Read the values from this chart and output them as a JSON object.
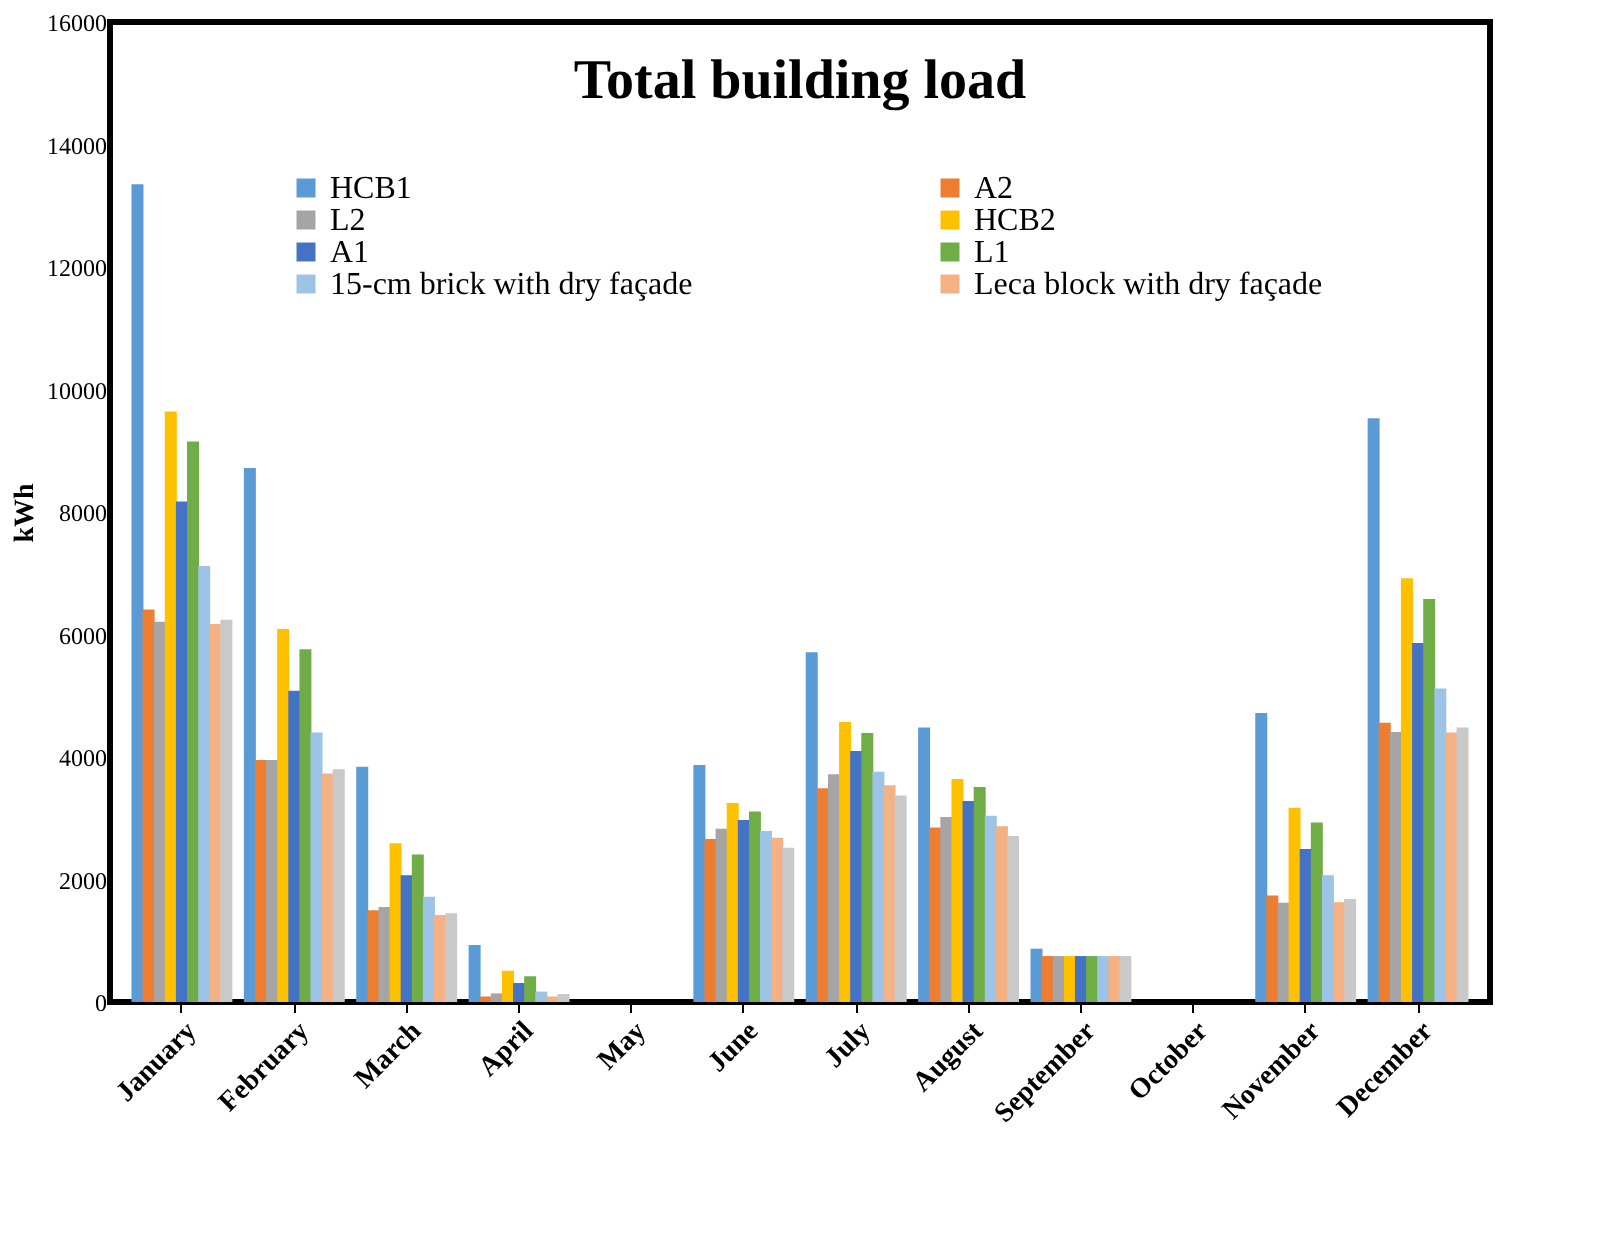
{
  "chart_data": {
    "type": "bar",
    "title": "Total building load",
    "ylabel": "kWh",
    "categories": [
      "January",
      "February",
      "March",
      "April",
      "May",
      "June",
      "July",
      "August",
      "September",
      "October",
      "November",
      "December"
    ],
    "series": [
      {
        "name": "HCB1",
        "color": "#5b9bd5",
        "values": [
          13350,
          8720,
          3840,
          930,
          0,
          3870,
          5710,
          4480,
          870,
          0,
          4720,
          9530
        ]
      },
      {
        "name": "A2",
        "color": "#ed7d31",
        "values": [
          6410,
          3950,
          1500,
          90,
          0,
          2660,
          3490,
          2850,
          750,
          0,
          1740,
          4560
        ]
      },
      {
        "name": "L2",
        "color": "#a5a5a5",
        "values": [
          6210,
          3950,
          1550,
          140,
          0,
          2830,
          3720,
          3020,
          750,
          0,
          1620,
          4410
        ]
      },
      {
        "name": "HCB2",
        "color": "#ffc000",
        "values": [
          9640,
          6090,
          2590,
          510,
          0,
          3250,
          4570,
          3640,
          750,
          0,
          3170,
          6920
        ]
      },
      {
        "name": "A1",
        "color": "#4472c4",
        "values": [
          8170,
          5080,
          2070,
          310,
          0,
          2970,
          4100,
          3280,
          750,
          0,
          2500,
          5860
        ]
      },
      {
        "name": "L1",
        "color": "#70ad47",
        "values": [
          9150,
          5760,
          2410,
          420,
          0,
          3110,
          4390,
          3510,
          750,
          0,
          2930,
          6580
        ]
      },
      {
        "name": "15-cm brick with dry façade",
        "color": "#9dc3e6",
        "values": [
          7120,
          4400,
          1720,
          170,
          0,
          2790,
          3760,
          3040,
          750,
          0,
          2070,
          5120
        ]
      },
      {
        "name": "Leca block with dry façade",
        "color": "#f4b183",
        "values": [
          6170,
          3730,
          1420,
          90,
          0,
          2680,
          3540,
          2870,
          750,
          0,
          1630,
          4400
        ]
      },
      {
        "color": "#c9c9c9",
        "values": [
          6240,
          3800,
          1450,
          130,
          0,
          2520,
          3370,
          2710,
          750,
          0,
          1680,
          4480
        ]
      }
    ],
    "ylim": [
      0,
      16000
    ],
    "yticks": [
      0,
      2000,
      4000,
      6000,
      8000,
      10000,
      12000,
      14000,
      16000
    ],
    "grid": false,
    "legend": "top"
  }
}
